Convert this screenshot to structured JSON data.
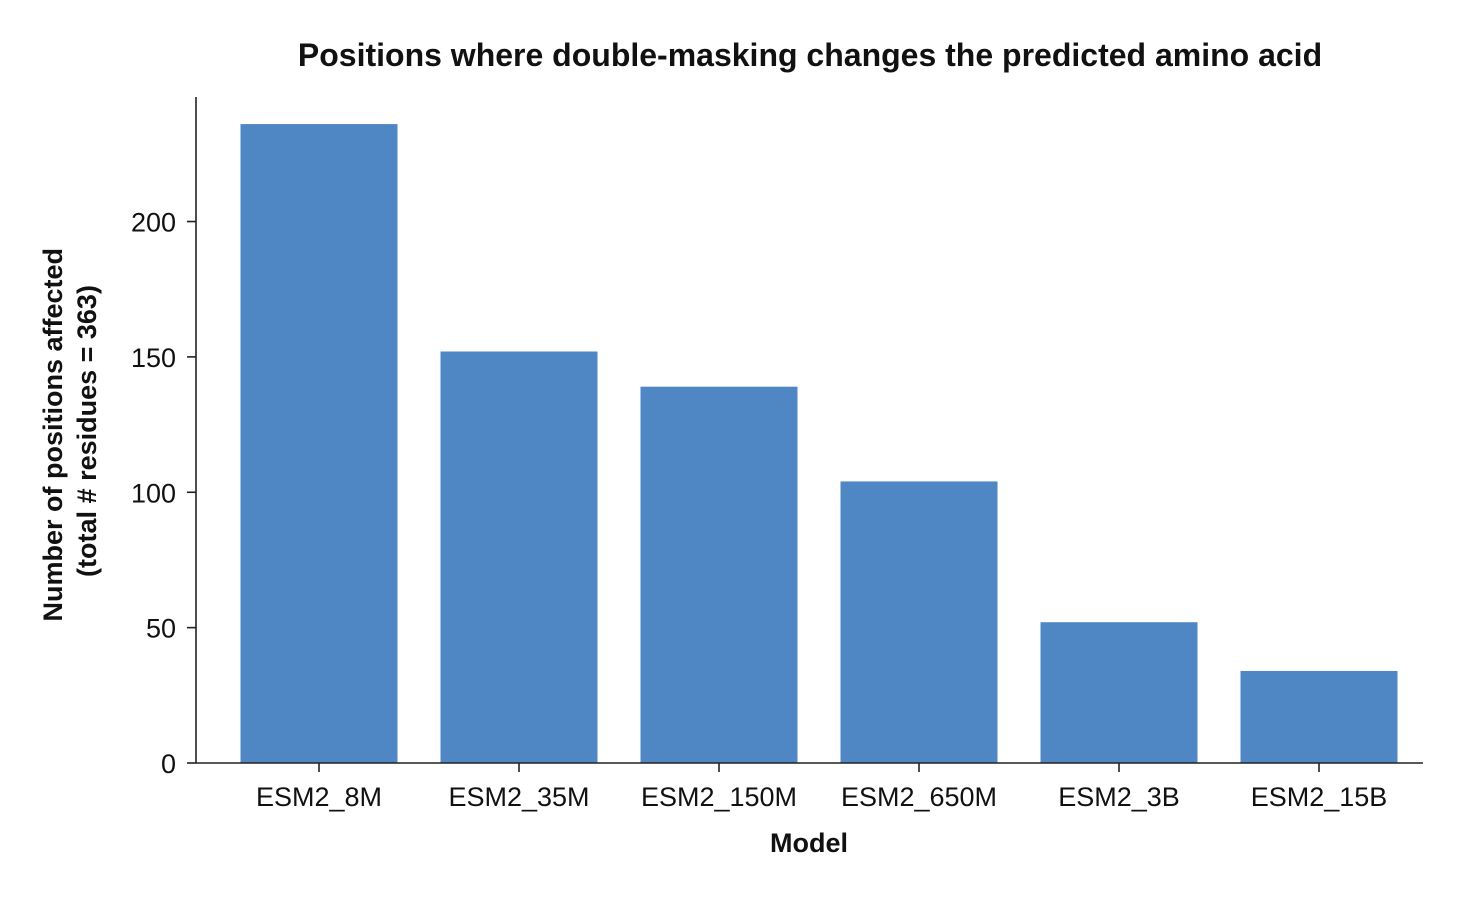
{
  "chart_data": {
    "type": "bar",
    "title": "Positions where double-masking changes the predicted amino acid",
    "xlabel": "Model",
    "ylabel": [
      "Number of positions affected",
      "(total # residues = 363)"
    ],
    "categories": [
      "ESM2_8M",
      "ESM2_35M",
      "ESM2_150M",
      "ESM2_650M",
      "ESM2_3B",
      "ESM2_15B"
    ],
    "values": [
      236,
      152,
      139,
      104,
      52,
      34
    ],
    "ylim": [
      0,
      246
    ],
    "yticks": [
      0,
      50,
      100,
      150,
      200
    ],
    "ytick_labels": [
      "0",
      "50",
      "100",
      "150",
      "200"
    ],
    "grid": false,
    "legend": "none",
    "colors": {
      "bar": "#4f87c4"
    }
  }
}
